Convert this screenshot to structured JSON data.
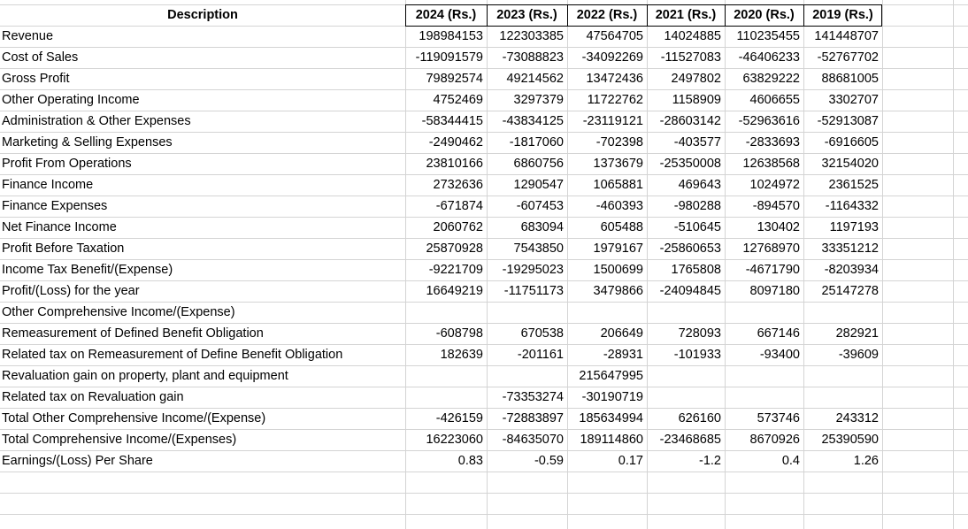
{
  "header": {
    "description": "Description",
    "years": [
      "2024 (Rs.)",
      "2023 (Rs.)",
      "2022 (Rs.)",
      "2021 (Rs.)",
      "2020 (Rs.)",
      "2019 (Rs.)"
    ]
  },
  "rows": [
    {
      "label": "Revenue",
      "values": [
        "198984153",
        "122303385",
        "47564705",
        "14024885",
        "110235455",
        "141448707"
      ]
    },
    {
      "label": "Cost of Sales",
      "values": [
        "-119091579",
        "-73088823",
        "-34092269",
        "-11527083",
        "-46406233",
        "-52767702"
      ]
    },
    {
      "label": "Gross Profit",
      "values": [
        "79892574",
        "49214562",
        "13472436",
        "2497802",
        "63829222",
        "88681005"
      ]
    },
    {
      "label": "Other Operating Income",
      "values": [
        "4752469",
        "3297379",
        "11722762",
        "1158909",
        "4606655",
        "3302707"
      ]
    },
    {
      "label": "Administration & Other Expenses",
      "values": [
        "-58344415",
        "-43834125",
        "-23119121",
        "-28603142",
        "-52963616",
        "-52913087"
      ]
    },
    {
      "label": "Marketing & Selling Expenses",
      "values": [
        "-2490462",
        "-1817060",
        "-702398",
        "-403577",
        "-2833693",
        "-6916605"
      ]
    },
    {
      "label": "Profit From Operations",
      "values": [
        "23810166",
        "6860756",
        "1373679",
        "-25350008",
        "12638568",
        "32154020"
      ]
    },
    {
      "label": "Finance Income",
      "values": [
        "2732636",
        "1290547",
        "1065881",
        "469643",
        "1024972",
        "2361525"
      ]
    },
    {
      "label": "Finance Expenses",
      "values": [
        "-671874",
        "-607453",
        "-460393",
        "-980288",
        "-894570",
        "-1164332"
      ]
    },
    {
      "label": "Net Finance Income",
      "values": [
        "2060762",
        "683094",
        "605488",
        "-510645",
        "130402",
        "1197193"
      ]
    },
    {
      "label": "Profit Before Taxation",
      "values": [
        "25870928",
        "7543850",
        "1979167",
        "-25860653",
        "12768970",
        "33351212"
      ]
    },
    {
      "label": "Income Tax Benefit/(Expense)",
      "values": [
        "-9221709",
        "-19295023",
        "1500699",
        "1765808",
        "-4671790",
        "-8203934"
      ]
    },
    {
      "label": "Profit/(Loss) for the year",
      "values": [
        "16649219",
        "-11751173",
        "3479866",
        "-24094845",
        "8097180",
        "25147278"
      ]
    },
    {
      "label": "Other Comprehensive Income/(Expense)",
      "values": [
        "",
        "",
        "",
        "",
        "",
        ""
      ]
    },
    {
      "label": "Remeasurement of Defined Benefit Obligation",
      "values": [
        "-608798",
        "670538",
        "206649",
        "728093",
        "667146",
        "282921"
      ]
    },
    {
      "label": "Related tax on Remeasurement of Define Benefit Obligation",
      "values": [
        "182639",
        "-201161",
        "-28931",
        "-101933",
        "-93400",
        "-39609"
      ]
    },
    {
      "label": "Revaluation gain on property, plant and equipment",
      "values": [
        "",
        "",
        "215647995",
        "",
        "",
        ""
      ]
    },
    {
      "label": "Related tax on Revaluation gain",
      "values": [
        "",
        "-73353274",
        "-30190719",
        "",
        "",
        ""
      ]
    },
    {
      "label": "Total Other Comprehensive Income/(Expense)",
      "values": [
        "-426159",
        "-72883897",
        "185634994",
        "626160",
        "573746",
        "243312"
      ]
    },
    {
      "label": "Total Comprehensive Income/(Expenses)",
      "values": [
        "16223060",
        "-84635070",
        "189114860",
        "-23468685",
        "8670926",
        "25390590"
      ]
    },
    {
      "label": "Earnings/(Loss) Per Share",
      "values": [
        "0.83",
        "-0.59",
        "0.17",
        "-1.2",
        "0.4",
        "1.26"
      ]
    }
  ]
}
